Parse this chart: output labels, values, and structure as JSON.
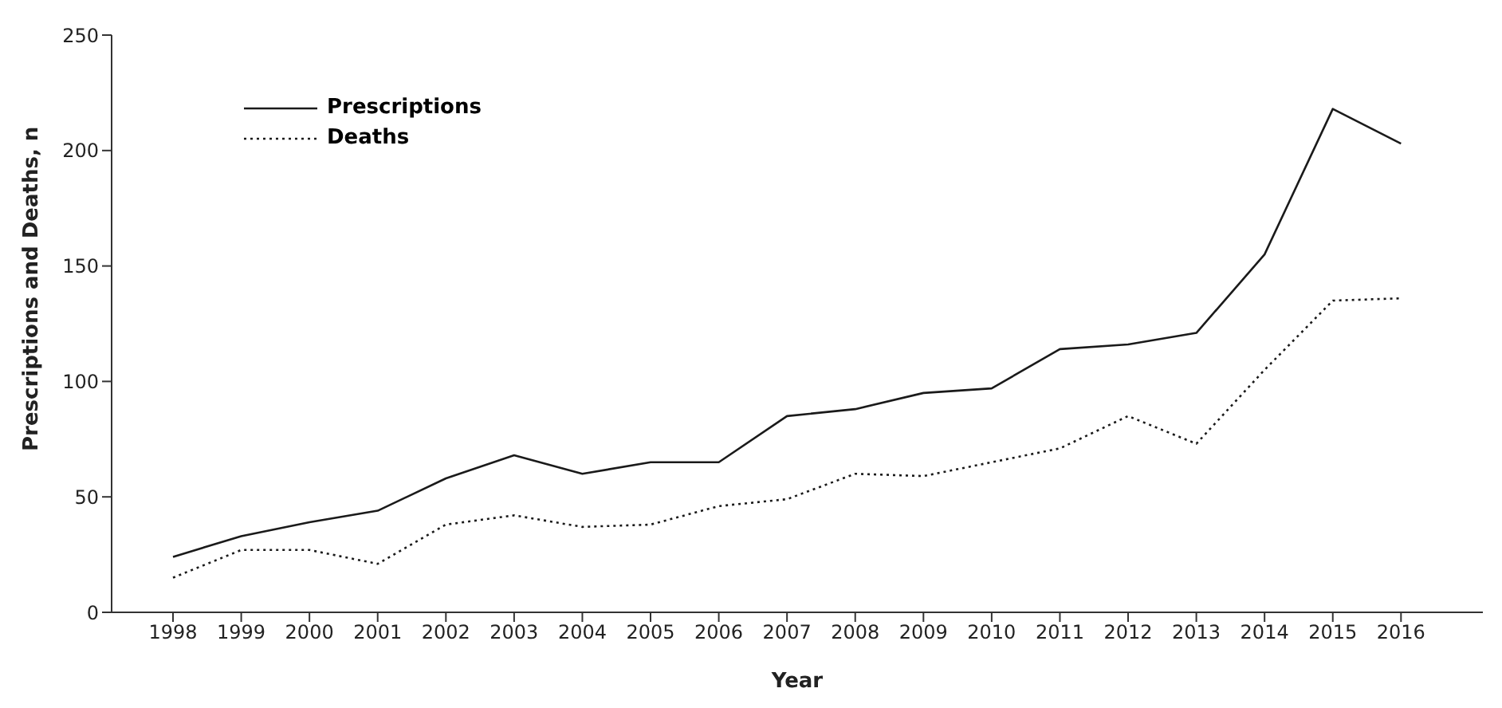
{
  "chart_data": {
    "type": "line",
    "xlabel": "Year",
    "ylabel": "Prescriptions and Deaths, n",
    "x": [
      1998,
      1999,
      2000,
      2001,
      2002,
      2003,
      2004,
      2005,
      2006,
      2007,
      2008,
      2009,
      2010,
      2011,
      2012,
      2013,
      2014,
      2015,
      2016
    ],
    "series": [
      {
        "name": "Prescriptions",
        "color": "#1a1a1a",
        "line_style": "solid",
        "values": [
          24,
          33,
          39,
          44,
          58,
          68,
          60,
          65,
          65,
          85,
          88,
          95,
          97,
          114,
          116,
          121,
          155,
          218,
          203
        ]
      },
      {
        "name": "Deaths",
        "color": "#1a1a1a",
        "line_style": "dotted",
        "values": [
          15,
          27,
          27,
          21,
          38,
          42,
          37,
          38,
          46,
          49,
          60,
          59,
          65,
          71,
          85,
          73,
          105,
          135,
          136
        ]
      }
    ],
    "xlim": [
      1997.1,
      2017.2
    ],
    "xticks": [
      1998,
      1999,
      2000,
      2001,
      2002,
      2003,
      2004,
      2005,
      2006,
      2007,
      2008,
      2009,
      2010,
      2011,
      2012,
      2013,
      2014,
      2015,
      2016
    ],
    "ylim": [
      0,
      250
    ],
    "yticks": [
      0,
      50,
      100,
      150,
      200,
      250
    ],
    "grid": false,
    "legend": "top left",
    "marker": "none"
  }
}
